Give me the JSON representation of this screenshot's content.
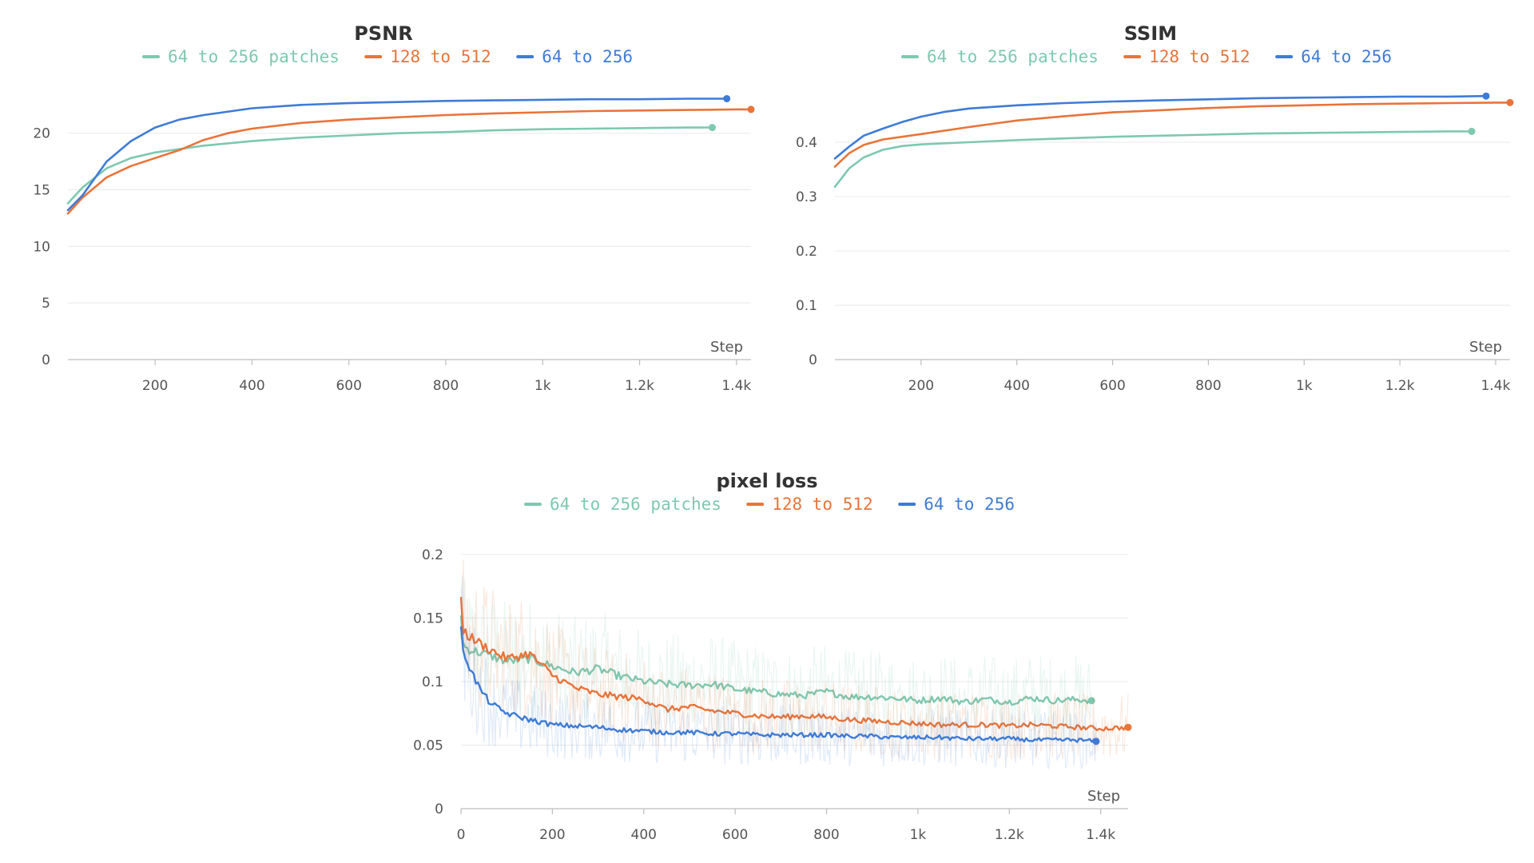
{
  "colors": {
    "teal": "#7ec8b0",
    "orange": "#e8743a",
    "blue": "#3f7bd6"
  },
  "chart_data": [
    {
      "id": "psnr",
      "type": "line",
      "title": "PSNR",
      "xlabel": "Step",
      "ylabel": "",
      "xlim": [
        20,
        1430
      ],
      "ylim": [
        0,
        24
      ],
      "x_ticks": [
        200,
        400,
        600,
        800,
        1000,
        1200,
        1400
      ],
      "x_tick_labels": [
        "200",
        "400",
        "600",
        "800",
        "1k",
        "1.2k",
        "1.4k"
      ],
      "y_ticks": [
        0,
        5,
        10,
        15,
        20
      ],
      "y_tick_labels": [
        "0",
        "5",
        "10",
        "15",
        "20"
      ],
      "grid": true,
      "legend_position": "top",
      "series": [
        {
          "name": "64 to 256 patches",
          "color": "#7ec8b0",
          "x": [
            20,
            50,
            100,
            150,
            200,
            250,
            300,
            400,
            500,
            600,
            700,
            800,
            900,
            1000,
            1100,
            1200,
            1300,
            1350
          ],
          "values": [
            13.8,
            15.2,
            16.9,
            17.8,
            18.3,
            18.6,
            18.9,
            19.3,
            19.6,
            19.8,
            20.0,
            20.1,
            20.25,
            20.35,
            20.4,
            20.45,
            20.5,
            20.5
          ]
        },
        {
          "name": "128 to 512",
          "color": "#e8743a",
          "x": [
            20,
            50,
            100,
            150,
            200,
            250,
            300,
            350,
            400,
            500,
            600,
            700,
            800,
            900,
            1000,
            1100,
            1200,
            1300,
            1400,
            1430
          ],
          "values": [
            12.9,
            14.3,
            16.1,
            17.1,
            17.8,
            18.5,
            19.4,
            20.0,
            20.4,
            20.9,
            21.2,
            21.4,
            21.6,
            21.75,
            21.85,
            21.95,
            22.0,
            22.05,
            22.1,
            22.1
          ]
        },
        {
          "name": "64 to 256",
          "color": "#3f7bd6",
          "x": [
            20,
            50,
            100,
            150,
            200,
            250,
            300,
            400,
            500,
            600,
            700,
            800,
            900,
            1000,
            1100,
            1200,
            1300,
            1380
          ],
          "values": [
            13.2,
            14.5,
            17.5,
            19.3,
            20.5,
            21.2,
            21.6,
            22.2,
            22.5,
            22.65,
            22.75,
            22.85,
            22.9,
            22.95,
            23.0,
            23.0,
            23.05,
            23.05
          ]
        }
      ]
    },
    {
      "id": "ssim",
      "type": "line",
      "title": "SSIM",
      "xlabel": "Step",
      "ylabel": "",
      "xlim": [
        20,
        1430
      ],
      "ylim": [
        0,
        0.5
      ],
      "x_ticks": [
        200,
        400,
        600,
        800,
        1000,
        1200,
        1400
      ],
      "x_tick_labels": [
        "200",
        "400",
        "600",
        "800",
        "1k",
        "1.2k",
        "1.4k"
      ],
      "y_ticks": [
        0,
        0.1,
        0.2,
        0.3,
        0.4
      ],
      "y_tick_labels": [
        "0",
        "0.1",
        "0.2",
        "0.3",
        "0.4"
      ],
      "grid": true,
      "legend_position": "top",
      "series": [
        {
          "name": "64 to 256 patches",
          "color": "#7ec8b0",
          "x": [
            20,
            50,
            80,
            120,
            160,
            200,
            300,
            400,
            500,
            600,
            700,
            800,
            900,
            1000,
            1100,
            1200,
            1300,
            1350
          ],
          "values": [
            0.318,
            0.352,
            0.372,
            0.386,
            0.393,
            0.396,
            0.4,
            0.404,
            0.407,
            0.41,
            0.412,
            0.414,
            0.416,
            0.417,
            0.418,
            0.419,
            0.42,
            0.42
          ]
        },
        {
          "name": "128 to 512",
          "color": "#e8743a",
          "x": [
            20,
            50,
            80,
            120,
            160,
            200,
            300,
            400,
            500,
            600,
            700,
            800,
            900,
            1000,
            1100,
            1200,
            1300,
            1400,
            1430
          ],
          "values": [
            0.355,
            0.38,
            0.395,
            0.405,
            0.41,
            0.415,
            0.428,
            0.44,
            0.448,
            0.455,
            0.459,
            0.463,
            0.466,
            0.468,
            0.47,
            0.471,
            0.472,
            0.473,
            0.473
          ]
        },
        {
          "name": "64 to 256",
          "color": "#3f7bd6",
          "x": [
            20,
            50,
            80,
            120,
            160,
            200,
            250,
            300,
            400,
            500,
            600,
            700,
            800,
            900,
            1000,
            1100,
            1200,
            1300,
            1380
          ],
          "values": [
            0.37,
            0.392,
            0.412,
            0.425,
            0.437,
            0.447,
            0.456,
            0.462,
            0.468,
            0.472,
            0.475,
            0.477,
            0.479,
            0.481,
            0.482,
            0.483,
            0.484,
            0.484,
            0.485
          ]
        }
      ]
    },
    {
      "id": "pixel-loss",
      "type": "line",
      "title": "pixel loss",
      "xlabel": "Step",
      "ylabel": "",
      "xlim": [
        0,
        1460
      ],
      "ylim": [
        0,
        0.21
      ],
      "x_ticks": [
        0,
        200,
        400,
        600,
        800,
        1000,
        1200,
        1400
      ],
      "x_tick_labels": [
        "0",
        "200",
        "400",
        "600",
        "800",
        "1k",
        "1.2k",
        "1.4k"
      ],
      "y_ticks": [
        0,
        0.05,
        0.1,
        0.15,
        0.2
      ],
      "y_tick_labels": [
        "0",
        "0.05",
        "0.1",
        "0.15",
        "0.2"
      ],
      "grid": true,
      "legend_position": "top",
      "series": [
        {
          "name": "64 to 256 patches",
          "color": "#7ec8b0",
          "x": [
            0,
            5,
            20,
            50,
            100,
            150,
            200,
            250,
            300,
            350,
            400,
            450,
            500,
            550,
            600,
            650,
            700,
            750,
            800,
            850,
            900,
            950,
            1000,
            1050,
            1100,
            1150,
            1200,
            1250,
            1300,
            1350,
            1380
          ],
          "values": [
            0.155,
            0.128,
            0.125,
            0.122,
            0.116,
            0.118,
            0.112,
            0.107,
            0.11,
            0.104,
            0.1,
            0.098,
            0.097,
            0.098,
            0.094,
            0.092,
            0.09,
            0.089,
            0.092,
            0.088,
            0.088,
            0.087,
            0.085,
            0.087,
            0.084,
            0.086,
            0.084,
            0.087,
            0.085,
            0.086,
            0.085
          ]
        },
        {
          "name": "128 to 512",
          "color": "#e8743a",
          "x": [
            0,
            5,
            20,
            50,
            100,
            150,
            200,
            250,
            300,
            350,
            400,
            450,
            500,
            550,
            600,
            650,
            700,
            750,
            800,
            850,
            900,
            950,
            1000,
            1050,
            1100,
            1150,
            1200,
            1250,
            1300,
            1350,
            1400,
            1460
          ],
          "values": [
            0.168,
            0.14,
            0.135,
            0.128,
            0.118,
            0.122,
            0.105,
            0.095,
            0.09,
            0.088,
            0.086,
            0.078,
            0.08,
            0.077,
            0.075,
            0.073,
            0.072,
            0.073,
            0.072,
            0.07,
            0.069,
            0.068,
            0.067,
            0.066,
            0.066,
            0.066,
            0.065,
            0.066,
            0.065,
            0.064,
            0.063,
            0.064
          ]
        },
        {
          "name": "64 to 256",
          "color": "#3f7bd6",
          "x": [
            0,
            5,
            20,
            40,
            60,
            80,
            100,
            150,
            200,
            250,
            300,
            350,
            400,
            450,
            500,
            550,
            600,
            650,
            700,
            750,
            800,
            850,
            900,
            950,
            1000,
            1050,
            1100,
            1150,
            1200,
            1250,
            1300,
            1350,
            1390
          ],
          "values": [
            0.14,
            0.125,
            0.11,
            0.095,
            0.085,
            0.079,
            0.075,
            0.07,
            0.066,
            0.065,
            0.064,
            0.062,
            0.061,
            0.06,
            0.06,
            0.059,
            0.059,
            0.058,
            0.058,
            0.058,
            0.058,
            0.057,
            0.057,
            0.056,
            0.056,
            0.056,
            0.055,
            0.055,
            0.055,
            0.054,
            0.054,
            0.054,
            0.053
          ]
        }
      ]
    }
  ]
}
